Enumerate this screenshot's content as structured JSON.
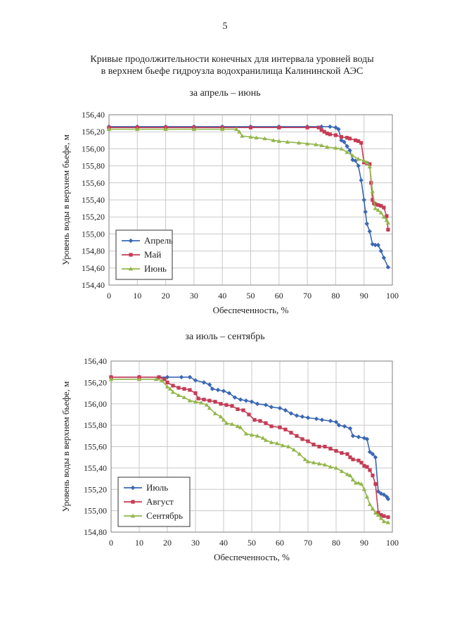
{
  "page_number": "5",
  "document_title": {
    "line1": "Кривые продолжительности конечных для интервала уровней воды",
    "line2": "в верхнем бьефе гидроузла водохранилища Калининской АЭС"
  },
  "colors": {
    "series1": "#3a67b3",
    "series2": "#c43c55",
    "series3": "#93b64b",
    "grid": "#c9c9c9"
  },
  "chart_data": [
    {
      "type": "line",
      "title": "за апрель – июнь",
      "xlabel": "Обеспеченность, %",
      "ylabel": "Уровень воды в верхнем бьефе, м",
      "xlim": [
        0,
        100
      ],
      "ylim": [
        154.4,
        156.4
      ],
      "xticks": [
        0,
        10,
        20,
        30,
        40,
        50,
        60,
        70,
        80,
        90,
        100
      ],
      "yticks": [
        154.4,
        154.6,
        154.8,
        155.0,
        155.2,
        155.4,
        155.6,
        155.8,
        156.0,
        156.2,
        156.4
      ],
      "ytick_labels": [
        "154,40",
        "154,60",
        "154,80",
        "155,00",
        "155,20",
        "155,40",
        "155,60",
        "155,80",
        "156,00",
        "156,20",
        "156,40"
      ],
      "grid": true,
      "legend_position": "bottom-left",
      "series": [
        {
          "name": "Апрель",
          "color": "#3a67b3",
          "marker": "diamond",
          "points": [
            [
              0,
              156.26
            ],
            [
              10,
              156.26
            ],
            [
              20,
              156.26
            ],
            [
              30,
              156.26
            ],
            [
              40,
              156.26
            ],
            [
              50,
              156.26
            ],
            [
              60,
              156.26
            ],
            [
              70,
              156.26
            ],
            [
              75,
              156.26
            ],
            [
              78,
              156.26
            ],
            [
              80,
              156.25
            ],
            [
              81,
              156.23
            ],
            [
              82,
              156.1
            ],
            [
              83,
              156.08
            ],
            [
              84,
              156.03
            ],
            [
              85,
              155.98
            ],
            [
              86,
              155.87
            ],
            [
              87,
              155.86
            ],
            [
              88,
              155.8
            ],
            [
              89,
              155.63
            ],
            [
              90,
              155.4
            ],
            [
              90.5,
              155.26
            ],
            [
              91,
              155.12
            ],
            [
              92,
              155.03
            ],
            [
              93,
              154.88
            ],
            [
              94,
              154.87
            ],
            [
              95,
              154.87
            ],
            [
              96,
              154.8
            ],
            [
              97,
              154.72
            ],
            [
              98.5,
              154.61
            ]
          ]
        },
        {
          "name": "Май",
          "color": "#c43c55",
          "marker": "square",
          "points": [
            [
              0,
              156.25
            ],
            [
              10,
              156.25
            ],
            [
              20,
              156.25
            ],
            [
              30,
              156.25
            ],
            [
              40,
              156.25
            ],
            [
              50,
              156.25
            ],
            [
              60,
              156.25
            ],
            [
              70,
              156.25
            ],
            [
              74,
              156.25
            ],
            [
              75,
              156.22
            ],
            [
              76,
              156.2
            ],
            [
              77,
              156.18
            ],
            [
              78,
              156.17
            ],
            [
              80,
              156.16
            ],
            [
              82,
              156.14
            ],
            [
              84,
              156.13
            ],
            [
              85,
              156.12
            ],
            [
              87,
              156.1
            ],
            [
              88,
              156.09
            ],
            [
              89,
              156.07
            ],
            [
              90,
              155.84
            ],
            [
              91,
              155.83
            ],
            [
              92,
              155.82
            ],
            [
              92.5,
              155.6
            ],
            [
              93,
              155.4
            ],
            [
              93.5,
              155.36
            ],
            [
              94,
              155.35
            ],
            [
              95,
              155.34
            ],
            [
              96,
              155.33
            ],
            [
              97,
              155.31
            ],
            [
              98,
              155.21
            ],
            [
              98.5,
              155.05
            ]
          ]
        },
        {
          "name": "Июнь",
          "color": "#93b64b",
          "marker": "triangle",
          "points": [
            [
              0,
              156.23
            ],
            [
              10,
              156.23
            ],
            [
              20,
              156.23
            ],
            [
              30,
              156.23
            ],
            [
              40,
              156.23
            ],
            [
              45,
              156.23
            ],
            [
              46,
              156.2
            ],
            [
              47,
              156.15
            ],
            [
              50,
              156.14
            ],
            [
              52,
              156.13
            ],
            [
              55,
              156.12
            ],
            [
              58,
              156.1
            ],
            [
              60,
              156.09
            ],
            [
              63,
              156.08
            ],
            [
              67,
              156.07
            ],
            [
              70,
              156.06
            ],
            [
              73,
              156.05
            ],
            [
              75,
              156.04
            ],
            [
              77,
              156.02
            ],
            [
              80,
              156.01
            ],
            [
              82,
              156.0
            ],
            [
              84,
              155.96
            ],
            [
              86,
              155.92
            ],
            [
              88,
              155.88
            ],
            [
              90,
              155.86
            ],
            [
              91,
              155.84
            ],
            [
              92,
              155.79
            ],
            [
              93,
              155.5
            ],
            [
              94,
              155.3
            ],
            [
              95,
              155.28
            ],
            [
              96,
              155.25
            ],
            [
              97,
              155.2
            ],
            [
              98,
              155.16
            ],
            [
              98.5,
              155.13
            ]
          ]
        }
      ]
    },
    {
      "type": "line",
      "title": "за июль – сентябрь",
      "xlabel": "Обеспеченность, %",
      "ylabel": "Уровень воды в верхнем бьефе, м",
      "xlim": [
        0,
        100
      ],
      "ylim": [
        154.8,
        156.4
      ],
      "xticks": [
        0,
        10,
        20,
        30,
        40,
        50,
        60,
        70,
        80,
        90,
        100
      ],
      "yticks": [
        154.8,
        155.0,
        155.2,
        155.4,
        155.6,
        155.8,
        156.0,
        156.2,
        156.4
      ],
      "ytick_labels": [
        "154,80",
        "155,00",
        "155,20",
        "155,40",
        "155,60",
        "155,80",
        "156,00",
        "156,20",
        "156,40"
      ],
      "grid": true,
      "legend_position": "bottom-left",
      "series": [
        {
          "name": "Июль",
          "color": "#3a67b3",
          "marker": "diamond",
          "points": [
            [
              0,
              156.25
            ],
            [
              10,
              156.25
            ],
            [
              20,
              156.25
            ],
            [
              25,
              156.25
            ],
            [
              28,
              156.25
            ],
            [
              30,
              156.22
            ],
            [
              33,
              156.2
            ],
            [
              35,
              156.18
            ],
            [
              36,
              156.14
            ],
            [
              38,
              156.13
            ],
            [
              40,
              156.12
            ],
            [
              42,
              156.1
            ],
            [
              44,
              156.06
            ],
            [
              46,
              156.04
            ],
            [
              48,
              156.03
            ],
            [
              50,
              156.02
            ],
            [
              52,
              156.0
            ],
            [
              55,
              155.99
            ],
            [
              57,
              155.97
            ],
            [
              60,
              155.96
            ],
            [
              62,
              155.94
            ],
            [
              64,
              155.91
            ],
            [
              66,
              155.89
            ],
            [
              68,
              155.88
            ],
            [
              70,
              155.87
            ],
            [
              73,
              155.86
            ],
            [
              75,
              155.85
            ],
            [
              78,
              155.84
            ],
            [
              80,
              155.83
            ],
            [
              81,
              155.8
            ],
            [
              83,
              155.79
            ],
            [
              85,
              155.77
            ],
            [
              86,
              155.7
            ],
            [
              88,
              155.69
            ],
            [
              90,
              155.68
            ],
            [
              91,
              155.67
            ],
            [
              92,
              155.55
            ],
            [
              93,
              155.53
            ],
            [
              94,
              155.5
            ],
            [
              95,
              155.18
            ],
            [
              96,
              155.16
            ],
            [
              97,
              155.15
            ],
            [
              98,
              155.13
            ],
            [
              98.5,
              155.11
            ]
          ]
        },
        {
          "name": "Август",
          "color": "#c43c55",
          "marker": "square",
          "points": [
            [
              0,
              156.25
            ],
            [
              10,
              156.25
            ],
            [
              17,
              156.25
            ],
            [
              19,
              156.23
            ],
            [
              20,
              156.2
            ],
            [
              22,
              156.17
            ],
            [
              24,
              156.15
            ],
            [
              26,
              156.14
            ],
            [
              28,
              156.13
            ],
            [
              30,
              156.1
            ],
            [
              31,
              156.05
            ],
            [
              33,
              156.04
            ],
            [
              35,
              156.03
            ],
            [
              37,
              156.02
            ],
            [
              39,
              156.0
            ],
            [
              41,
              155.99
            ],
            [
              43,
              155.98
            ],
            [
              45,
              155.95
            ],
            [
              47,
              155.94
            ],
            [
              49,
              155.9
            ],
            [
              51,
              155.85
            ],
            [
              53,
              155.84
            ],
            [
              55,
              155.82
            ],
            [
              57,
              155.79
            ],
            [
              60,
              155.78
            ],
            [
              62,
              155.76
            ],
            [
              64,
              155.73
            ],
            [
              66,
              155.7
            ],
            [
              68,
              155.67
            ],
            [
              70,
              155.65
            ],
            [
              72,
              155.62
            ],
            [
              74,
              155.6
            ],
            [
              76,
              155.6
            ],
            [
              78,
              155.58
            ],
            [
              80,
              155.56
            ],
            [
              82,
              155.54
            ],
            [
              84,
              155.53
            ],
            [
              85,
              155.5
            ],
            [
              86,
              155.48
            ],
            [
              88,
              155.47
            ],
            [
              89,
              155.45
            ],
            [
              90,
              155.42
            ],
            [
              91,
              155.41
            ],
            [
              92,
              155.38
            ],
            [
              93,
              155.33
            ],
            [
              94,
              155.25
            ],
            [
              95,
              154.98
            ],
            [
              96,
              154.96
            ],
            [
              97,
              154.95
            ],
            [
              98.5,
              154.94
            ]
          ]
        },
        {
          "name": "Сентябрь",
          "color": "#93b64b",
          "marker": "triangle",
          "points": [
            [
              0,
              156.23
            ],
            [
              10,
              156.23
            ],
            [
              16,
              156.23
            ],
            [
              18,
              156.22
            ],
            [
              20,
              156.16
            ],
            [
              21,
              156.14
            ],
            [
              22,
              156.11
            ],
            [
              24,
              156.08
            ],
            [
              26,
              156.06
            ],
            [
              28,
              156.03
            ],
            [
              30,
              156.02
            ],
            [
              32,
              156.01
            ],
            [
              34,
              155.99
            ],
            [
              35,
              155.96
            ],
            [
              37,
              155.91
            ],
            [
              39,
              155.88
            ],
            [
              40,
              155.85
            ],
            [
              41,
              155.82
            ],
            [
              43,
              155.81
            ],
            [
              45,
              155.79
            ],
            [
              46,
              155.78
            ],
            [
              48,
              155.72
            ],
            [
              50,
              155.71
            ],
            [
              52,
              155.7
            ],
            [
              54,
              155.68
            ],
            [
              55,
              155.66
            ],
            [
              57,
              155.64
            ],
            [
              59,
              155.63
            ],
            [
              61,
              155.61
            ],
            [
              63,
              155.6
            ],
            [
              65,
              155.57
            ],
            [
              67,
              155.53
            ],
            [
              69,
              155.48
            ],
            [
              70,
              155.46
            ],
            [
              72,
              155.45
            ],
            [
              74,
              155.44
            ],
            [
              76,
              155.43
            ],
            [
              78,
              155.41
            ],
            [
              80,
              155.4
            ],
            [
              82,
              155.37
            ],
            [
              84,
              155.34
            ],
            [
              85,
              155.33
            ],
            [
              86,
              155.29
            ],
            [
              87,
              155.26
            ],
            [
              88,
              155.26
            ],
            [
              89,
              155.25
            ],
            [
              90,
              155.2
            ],
            [
              91,
              155.13
            ],
            [
              92,
              155.06
            ],
            [
              93,
              155.02
            ],
            [
              94,
              154.98
            ],
            [
              95,
              154.96
            ],
            [
              96,
              154.93
            ],
            [
              97,
              154.9
            ],
            [
              98.5,
              154.89
            ]
          ]
        }
      ]
    }
  ]
}
